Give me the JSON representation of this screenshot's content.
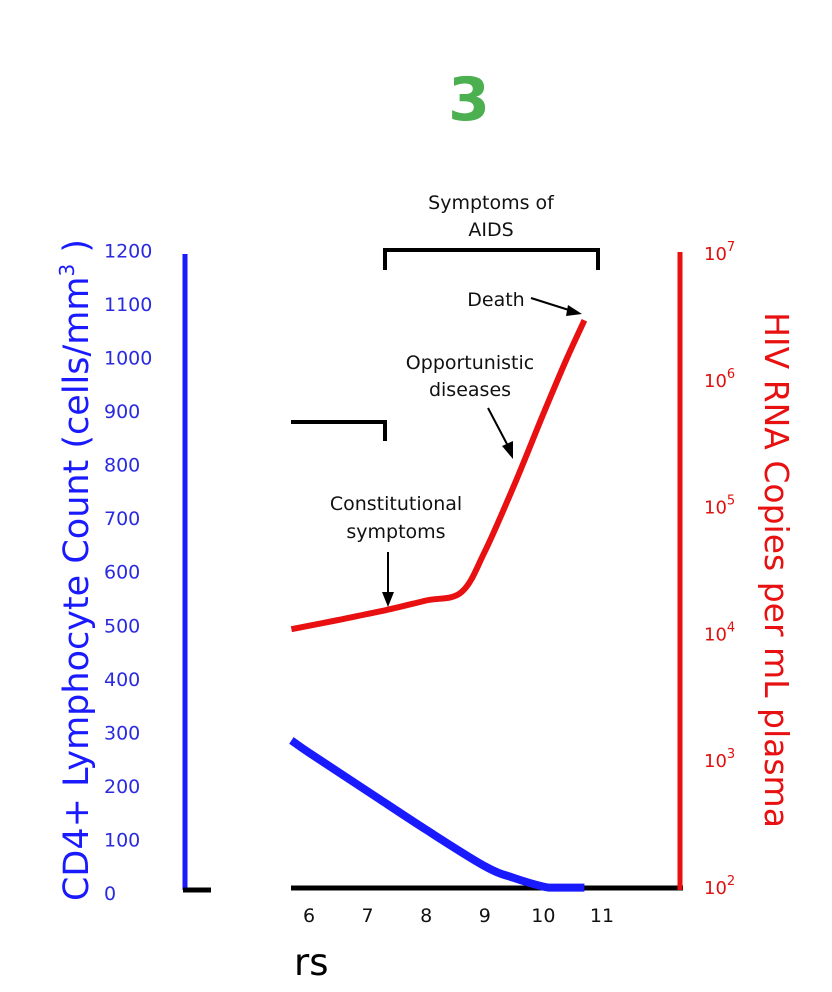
{
  "chart_data": {
    "type": "line",
    "step_label": "3",
    "x_tick_labels": [
      "6",
      "7",
      "8",
      "9",
      "10",
      "11"
    ],
    "xlabel_visible_fragment": "rs",
    "y_left": {
      "label": "CD4+ Lymphocyte Count (cells/mm",
      "label_superscript": "3",
      "label_suffix": " )",
      "ticks": [
        "0",
        "100",
        "200",
        "300",
        "400",
        "500",
        "600",
        "700",
        "800",
        "900",
        "1000",
        "1100",
        "1200"
      ],
      "range": [
        0,
        1200
      ]
    },
    "y_right": {
      "label": "HIV RNA Copies per mL plasma",
      "scale": "log",
      "tick_base": "10",
      "tick_exponents": [
        "2",
        "3",
        "4",
        "5",
        "6",
        "7"
      ],
      "range": [
        100,
        10000000
      ]
    },
    "series": [
      {
        "color": "#1a1aff",
        "axis": "left",
        "points": [
          [
            5.7,
            285
          ],
          [
            6.0,
            262
          ],
          [
            7.0,
            190
          ],
          [
            8.0,
            118
          ],
          [
            9.0,
            50
          ],
          [
            9.5,
            28
          ],
          [
            10.0,
            12
          ],
          [
            10.2,
            10
          ],
          [
            10.7,
            10
          ]
        ]
      },
      {
        "color": "#e81010",
        "axis": "right",
        "points": [
          [
            5.7,
            11000
          ],
          [
            6.5,
            13000
          ],
          [
            7.3,
            15500
          ],
          [
            8.0,
            18500
          ],
          [
            8.6,
            21500
          ],
          [
            9.0,
            45000
          ],
          [
            9.5,
            150000
          ],
          [
            10.0,
            550000
          ],
          [
            10.4,
            1500000
          ],
          [
            10.7,
            3000000
          ]
        ]
      }
    ],
    "annotations": {
      "symptoms_of_aids": [
        "Symptoms of",
        "AIDS"
      ],
      "death": "Death",
      "opportunistic": [
        "Opportunistic",
        "diseases"
      ],
      "constitutional": [
        "Constitutional",
        "symptoms"
      ]
    }
  },
  "colors": {
    "cd4": "#1a1aff",
    "hiv": "#e81010",
    "step": "#4caf50",
    "ink": "#000000"
  }
}
